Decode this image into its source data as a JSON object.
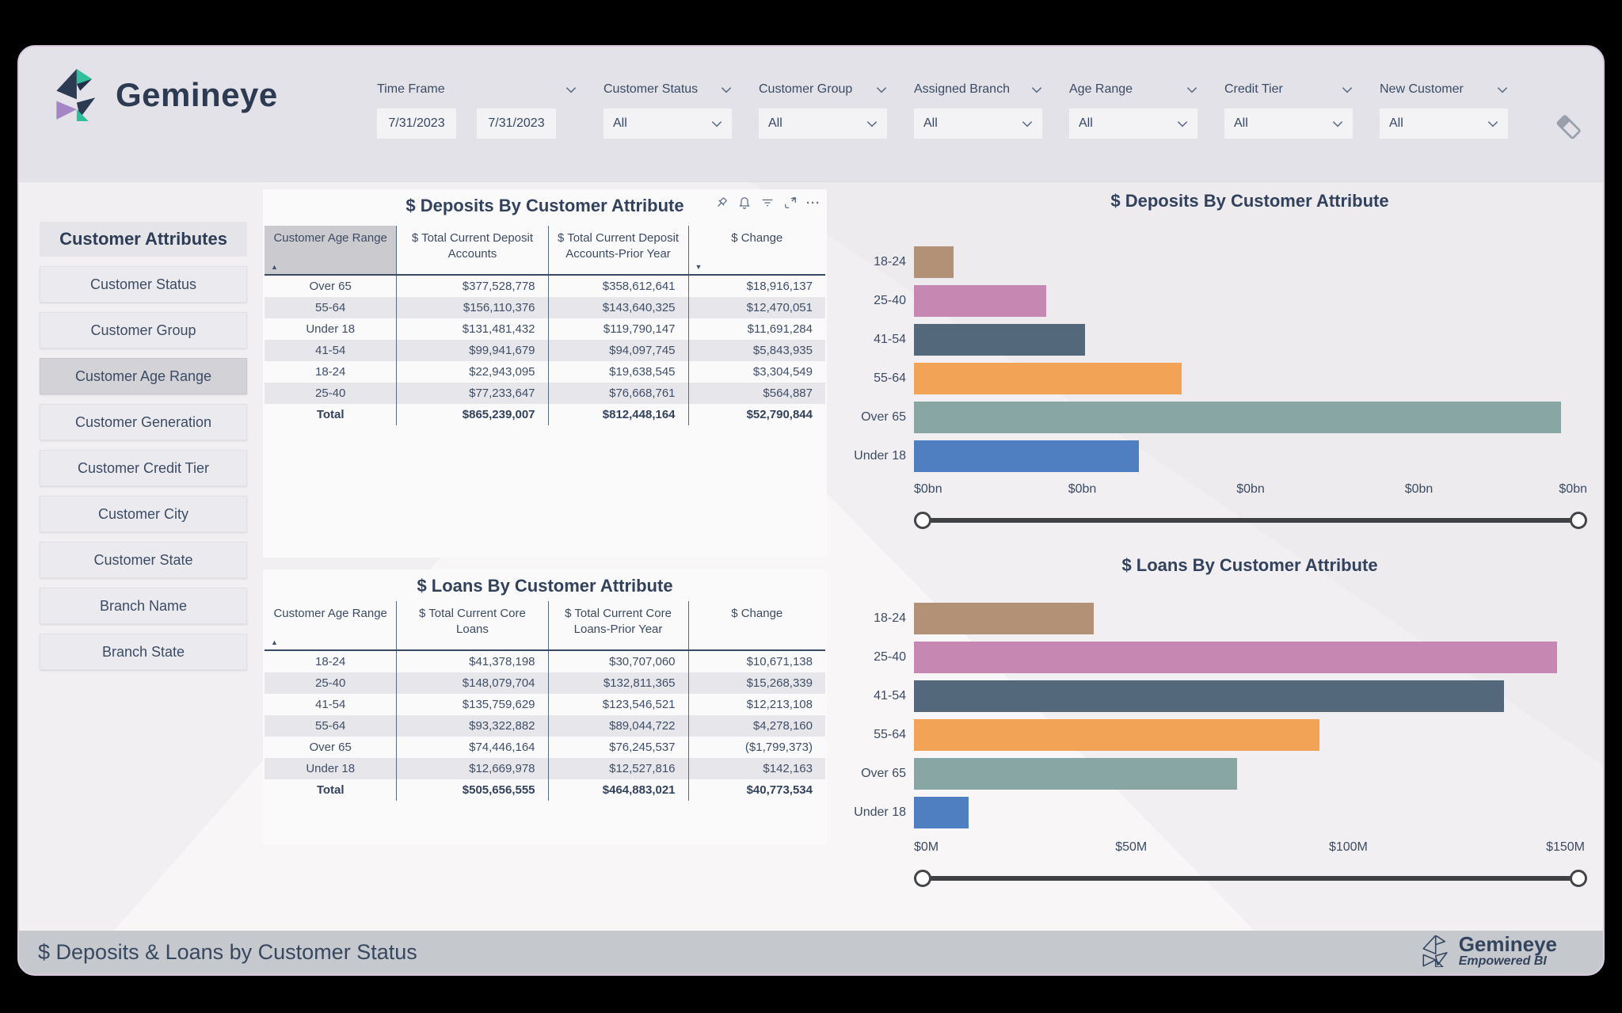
{
  "brand": {
    "name": "Gemineye",
    "tagline": "Empowered BI"
  },
  "header": {
    "filters": [
      {
        "label": "Time Frame",
        "type": "daterange",
        "from": "7/31/2023",
        "to": "7/31/2023"
      },
      {
        "label": "Customer Status",
        "type": "dropdown",
        "value": "All"
      },
      {
        "label": "Customer Group",
        "type": "dropdown",
        "value": "All"
      },
      {
        "label": "Assigned Branch",
        "type": "dropdown",
        "value": "All"
      },
      {
        "label": "Age Range",
        "type": "dropdown",
        "value": "All"
      },
      {
        "label": "Credit Tier",
        "type": "dropdown",
        "value": "All"
      },
      {
        "label": "New Customer",
        "type": "dropdown",
        "value": "All"
      }
    ],
    "clear_filters_icon": "eraser"
  },
  "sidebar": {
    "title": "Customer Attributes",
    "items": [
      {
        "label": "Customer Status",
        "selected": false
      },
      {
        "label": "Customer Group",
        "selected": false
      },
      {
        "label": "Customer Age Range",
        "selected": true
      },
      {
        "label": "Customer Generation",
        "selected": false
      },
      {
        "label": "Customer Credit Tier",
        "selected": false
      },
      {
        "label": "Customer City",
        "selected": false
      },
      {
        "label": "Customer State",
        "selected": false
      },
      {
        "label": "Branch Name",
        "selected": false
      },
      {
        "label": "Branch State",
        "selected": false
      }
    ]
  },
  "visual_toolbar": {
    "icons": [
      "pin",
      "alert",
      "filter",
      "focus-mode",
      "more-options"
    ]
  },
  "deposits_table": {
    "title": "$ Deposits By Customer Attribute",
    "columns": [
      "Customer Age Range",
      "$ Total Current Deposit Accounts",
      "$ Total Current Deposit Accounts-Prior Year",
      "$ Change"
    ],
    "sort": [
      {
        "col": 0,
        "dir": "asc"
      },
      {
        "col": 3,
        "dir": "desc"
      }
    ],
    "rows": [
      [
        "Over 65",
        "$377,528,778",
        "$358,612,641",
        "$18,916,137"
      ],
      [
        "55-64",
        "$156,110,376",
        "$143,640,325",
        "$12,470,051"
      ],
      [
        "Under 18",
        "$131,481,432",
        "$119,790,147",
        "$11,691,284"
      ],
      [
        "41-54",
        "$99,941,679",
        "$94,097,745",
        "$5,843,935"
      ],
      [
        "18-24",
        "$22,943,095",
        "$19,638,545",
        "$3,304,549"
      ],
      [
        "25-40",
        "$77,233,647",
        "$76,668,761",
        "$564,887"
      ]
    ],
    "total": [
      "Total",
      "$865,239,007",
      "$812,448,164",
      "$52,790,844"
    ]
  },
  "loans_table": {
    "title": "$ Loans By Customer Attribute",
    "columns": [
      "Customer Age Range",
      "$ Total Current Core Loans",
      "$ Total Current Core Loans-Prior Year",
      "$ Change"
    ],
    "sort": [
      {
        "col": 0,
        "dir": "asc"
      }
    ],
    "rows": [
      [
        "18-24",
        "$41,378,198",
        "$30,707,060",
        "$10,671,138"
      ],
      [
        "25-40",
        "$148,079,704",
        "$132,811,365",
        "$15,268,339"
      ],
      [
        "41-54",
        "$135,759,629",
        "$123,546,521",
        "$12,213,108"
      ],
      [
        "55-64",
        "$93,322,882",
        "$89,044,722",
        "$4,278,160"
      ],
      [
        "Over 65",
        "$74,446,164",
        "$76,245,537",
        "($1,799,373)"
      ],
      [
        "Under 18",
        "$12,669,978",
        "$12,527,816",
        "$142,163"
      ]
    ],
    "total": [
      "Total",
      "$505,656,555",
      "$464,883,021",
      "$40,773,534"
    ]
  },
  "chart_data": [
    {
      "type": "bar",
      "orientation": "horizontal",
      "title": "$ Deposits By Customer Attribute",
      "categories": [
        "18-24",
        "25-40",
        "41-54",
        "55-64",
        "Over 65",
        "Under 18"
      ],
      "values": [
        22943095,
        77233647,
        99941679,
        156110376,
        377528778,
        131481432
      ],
      "colors": [
        "#b39176",
        "#c687b2",
        "#54687c",
        "#f3a355",
        "#87a6a4",
        "#4f7fc1"
      ],
      "xlim": [
        0,
        393000000
      ],
      "ticks": [
        {
          "label": "$0bn",
          "pos": 0
        },
        {
          "label": "$0bn",
          "pos": 0.25
        },
        {
          "label": "$0bn",
          "pos": 0.5
        },
        {
          "label": "$0bn",
          "pos": 0.75
        },
        {
          "label": "$0bn",
          "pos": 1
        }
      ],
      "grid": false,
      "legend": false,
      "range_slider": {
        "min_handle": 0,
        "max_handle": 1
      }
    },
    {
      "type": "bar",
      "orientation": "horizontal",
      "title": "$ Loans By Customer Attribute",
      "categories": [
        "18-24",
        "25-40",
        "41-54",
        "55-64",
        "Over 65",
        "Under 18"
      ],
      "values": [
        41378198,
        148079704,
        135759629,
        93322882,
        74446164,
        12669978
      ],
      "colors": [
        "#b39176",
        "#c687b2",
        "#54687c",
        "#f3a355",
        "#87a6a4",
        "#4f7fc1"
      ],
      "xlim": [
        0,
        155000000
      ],
      "ticks": [
        {
          "label": "$0M",
          "pos": 0
        },
        {
          "label": "$50M",
          "pos": 0.3226
        },
        {
          "label": "$100M",
          "pos": 0.6452
        },
        {
          "label": "$150M",
          "pos": 0.9677
        }
      ],
      "grid": false,
      "legend": false,
      "range_slider": {
        "min_handle": 0,
        "max_handle": 1
      }
    }
  ],
  "footer": {
    "title": "$ Deposits & Loans by Customer Status"
  }
}
